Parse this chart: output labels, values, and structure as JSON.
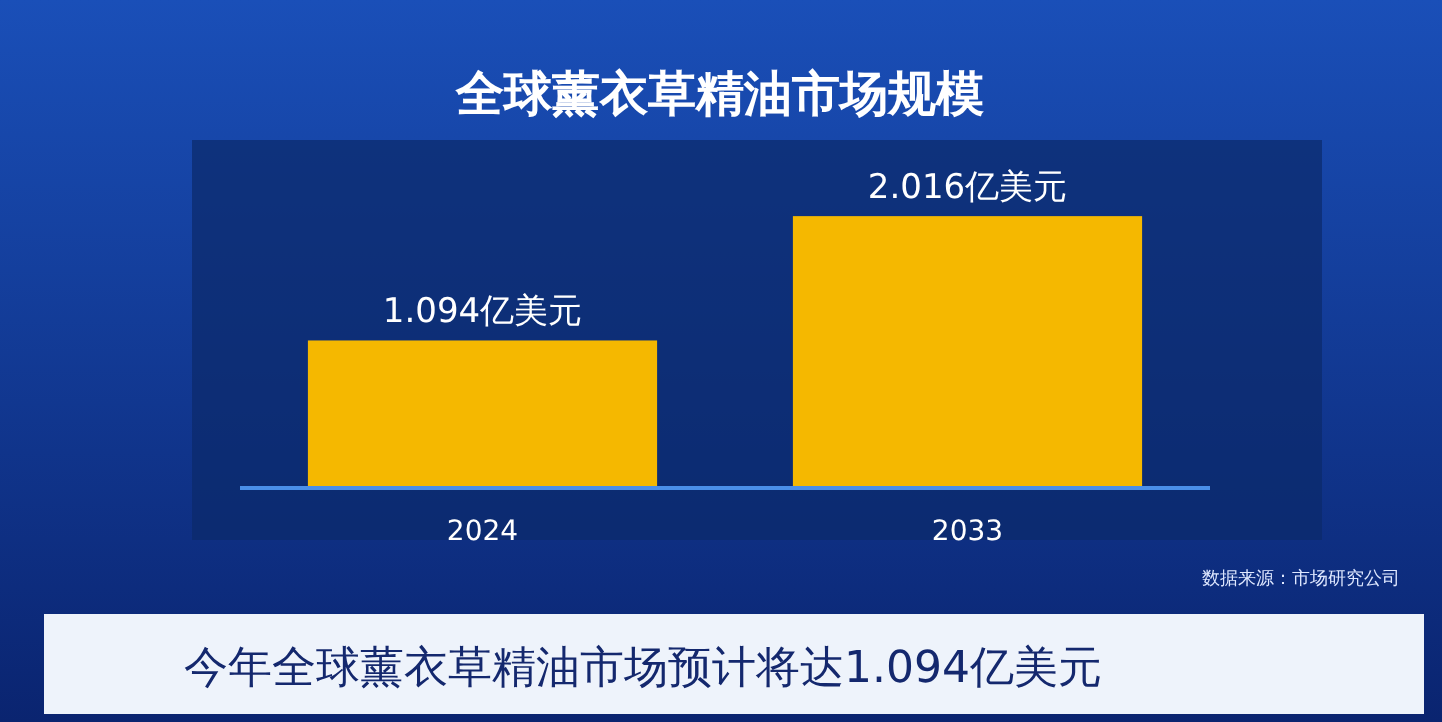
{
  "chart_data": {
    "type": "bar",
    "title": "全球薰衣草精油市场规模",
    "categories": [
      "2024",
      "2033"
    ],
    "values": [
      1.094,
      2.016
    ],
    "value_labels": [
      "1.094亿美元",
      "2.016亿美元"
    ],
    "color": "#f5b800",
    "annotations": [
      "数据来源：市场研究公司",
      "今年全球薰衣草精油市场预计将达1.094亿美元"
    ]
  }
}
